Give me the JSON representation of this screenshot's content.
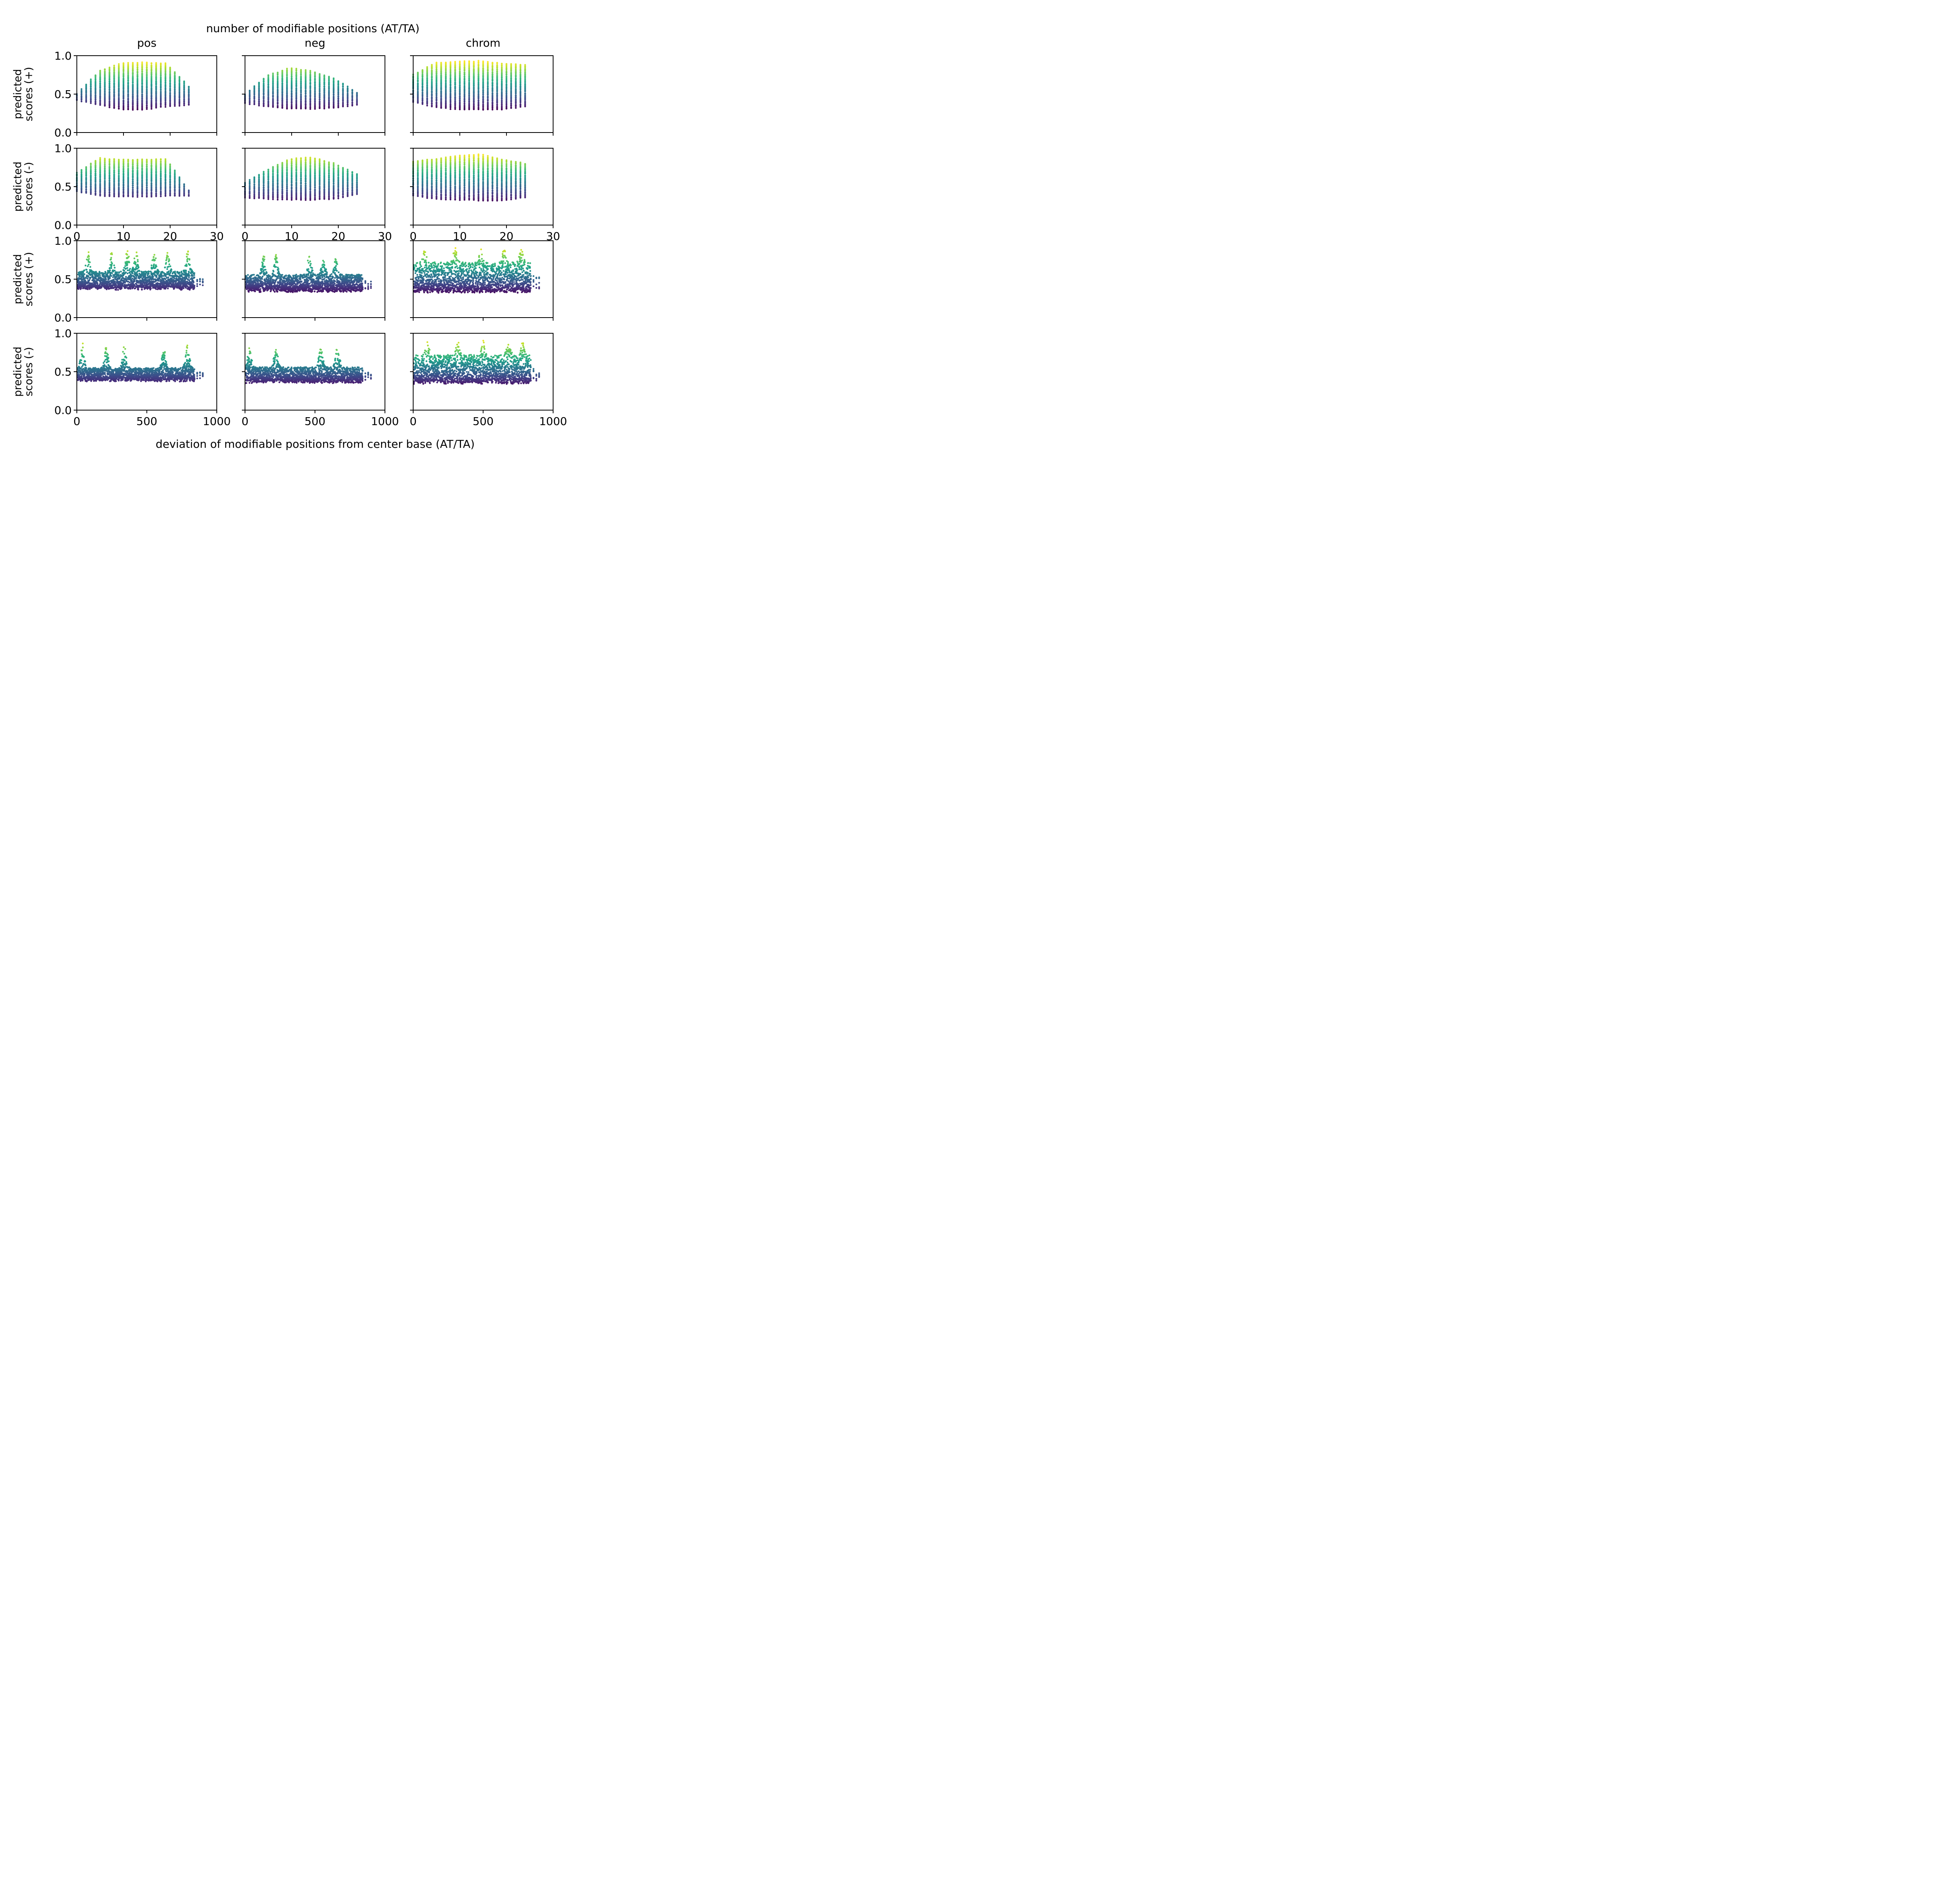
{
  "figure": {
    "top_label": "number of modifiable positions (AT/TA)",
    "bottom_label": "deviation of modifiable positions from center base (AT/TA)",
    "column_titles": [
      "pos",
      "neg",
      "chrom"
    ],
    "row_ylabels": [
      [
        "predicted",
        "scores (+)"
      ],
      [
        "predicted",
        "scores (-)"
      ],
      [
        "predicted",
        "scores (+)"
      ],
      [
        "predicted",
        "scores (-)"
      ]
    ]
  },
  "chart_data": [
    {
      "type": "scatter",
      "row": 0,
      "col": 0,
      "subtitle": "pos",
      "xlim": [
        0,
        30
      ],
      "ylim": [
        0,
        1
      ],
      "yticks": [
        "0.0",
        "0.5",
        "1.0"
      ],
      "x_range": [
        0,
        24
      ],
      "y_band_low": [
        0.42,
        0.36,
        0.3,
        0.3,
        0.34,
        0.36
      ],
      "y_band_high": [
        0.5,
        0.8,
        0.9,
        0.91,
        0.9,
        0.6
      ],
      "colormap": "viridis"
    },
    {
      "type": "scatter",
      "row": 0,
      "col": 1,
      "subtitle": "neg",
      "xlim": [
        0,
        30
      ],
      "ylim": [
        0,
        1
      ],
      "yticks": [
        "0.0",
        "0.5",
        "1.0"
      ],
      "x_range": [
        0,
        24
      ],
      "y_band_low": [
        0.38,
        0.34,
        0.31,
        0.31,
        0.32,
        0.36
      ],
      "y_band_high": [
        0.5,
        0.74,
        0.84,
        0.8,
        0.7,
        0.52
      ],
      "colormap": "viridis"
    },
    {
      "type": "scatter",
      "row": 0,
      "col": 2,
      "subtitle": "chrom",
      "xlim": [
        0,
        30
      ],
      "ylim": [
        0,
        1
      ],
      "yticks": [
        "0.0",
        "0.5",
        "1.0"
      ],
      "x_range": [
        0,
        24
      ],
      "y_band_low": [
        0.4,
        0.33,
        0.3,
        0.3,
        0.3,
        0.34
      ],
      "y_band_high": [
        0.75,
        0.91,
        0.92,
        0.93,
        0.9,
        0.88
      ],
      "colormap": "viridis"
    },
    {
      "type": "scatter",
      "row": 1,
      "col": 0,
      "subtitle": "pos",
      "xlim": [
        0,
        30
      ],
      "ylim": [
        0,
        1
      ],
      "yticks": [
        "0.0",
        "0.5",
        "1.0"
      ],
      "xticks": [
        "0",
        "10",
        "20",
        "30"
      ],
      "x_range": [
        0,
        24
      ],
      "y_band_low": [
        0.44,
        0.38,
        0.37,
        0.37,
        0.38,
        0.38
      ],
      "y_band_high": [
        0.68,
        0.87,
        0.85,
        0.85,
        0.86,
        0.45
      ],
      "colormap": "viridis"
    },
    {
      "type": "scatter",
      "row": 1,
      "col": 1,
      "subtitle": "neg",
      "xlim": [
        0,
        30
      ],
      "ylim": [
        0,
        1
      ],
      "yticks": [
        "0.0",
        "0.5",
        "1.0"
      ],
      "xticks": [
        "0",
        "10",
        "20",
        "30"
      ],
      "x_range": [
        0,
        24
      ],
      "y_band_low": [
        0.36,
        0.34,
        0.33,
        0.33,
        0.34,
        0.4
      ],
      "y_band_high": [
        0.55,
        0.72,
        0.86,
        0.88,
        0.8,
        0.66
      ],
      "colormap": "viridis"
    },
    {
      "type": "scatter",
      "row": 1,
      "col": 2,
      "subtitle": "chrom",
      "xlim": [
        0,
        30
      ],
      "ylim": [
        0,
        1
      ],
      "yticks": [
        "0.0",
        "0.5",
        "1.0"
      ],
      "xticks": [
        "0",
        "10",
        "20",
        "30"
      ],
      "x_range": [
        0,
        24
      ],
      "y_band_low": [
        0.38,
        0.34,
        0.33,
        0.32,
        0.32,
        0.36
      ],
      "y_band_high": [
        0.83,
        0.86,
        0.9,
        0.92,
        0.85,
        0.8
      ],
      "colormap": "viridis"
    },
    {
      "type": "scatter",
      "row": 2,
      "col": 0,
      "subtitle": "pos",
      "xlim": [
        0,
        1000
      ],
      "ylim": [
        0,
        1
      ],
      "yticks": [
        "0.0",
        "0.5",
        "1.0"
      ],
      "x_range": [
        0,
        900
      ],
      "y_typical": [
        0.36,
        0.6
      ],
      "y_max": 0.9,
      "peaks_at": [
        80,
        250,
        360,
        420,
        550,
        650,
        790
      ],
      "colormap": "viridis"
    },
    {
      "type": "scatter",
      "row": 2,
      "col": 1,
      "subtitle": "neg",
      "xlim": [
        0,
        1000
      ],
      "ylim": [
        0,
        1
      ],
      "yticks": [
        "0.0",
        "0.5",
        "1.0"
      ],
      "x_range": [
        0,
        900
      ],
      "y_typical": [
        0.33,
        0.56
      ],
      "y_max": 0.84,
      "peaks_at": [
        130,
        220,
        460,
        560,
        650
      ],
      "colormap": "viridis"
    },
    {
      "type": "scatter",
      "row": 2,
      "col": 2,
      "subtitle": "chrom",
      "xlim": [
        0,
        1000
      ],
      "ylim": [
        0,
        1
      ],
      "yticks": [
        "0.0",
        "0.5",
        "1.0"
      ],
      "x_range": [
        0,
        900
      ],
      "y_typical": [
        0.32,
        0.72
      ],
      "y_max": 0.93,
      "peaks_at": [
        80,
        300,
        480,
        650,
        770
      ],
      "colormap": "viridis"
    },
    {
      "type": "scatter",
      "row": 3,
      "col": 0,
      "subtitle": "pos",
      "xlim": [
        0,
        1000
      ],
      "ylim": [
        0,
        1
      ],
      "yticks": [
        "0.0",
        "0.5",
        "1.0"
      ],
      "xticks": [
        "0",
        "500",
        "1000"
      ],
      "x_range": [
        0,
        900
      ],
      "y_typical": [
        0.37,
        0.55
      ],
      "y_max": 0.88,
      "peaks_at": [
        40,
        210,
        340,
        620,
        790
      ],
      "colormap": "viridis"
    },
    {
      "type": "scatter",
      "row": 3,
      "col": 1,
      "subtitle": "neg",
      "xlim": [
        0,
        1000
      ],
      "ylim": [
        0,
        1
      ],
      "yticks": [
        "0.0",
        "0.5",
        "1.0"
      ],
      "xticks": [
        "0",
        "500",
        "1000"
      ],
      "x_range": [
        0,
        900
      ],
      "y_typical": [
        0.35,
        0.56
      ],
      "y_max": 0.88,
      "peaks_at": [
        30,
        220,
        540,
        660
      ],
      "colormap": "viridis"
    },
    {
      "type": "scatter",
      "row": 3,
      "col": 2,
      "subtitle": "chrom",
      "xlim": [
        0,
        1000
      ],
      "ylim": [
        0,
        1
      ],
      "yticks": [
        "0.0",
        "0.5",
        "1.0"
      ],
      "xticks": [
        "0",
        "500",
        "1000"
      ],
      "x_range": [
        0,
        900
      ],
      "y_typical": [
        0.34,
        0.72
      ],
      "y_max": 0.92,
      "peaks_at": [
        100,
        320,
        500,
        680,
        780
      ],
      "colormap": "viridis"
    }
  ]
}
